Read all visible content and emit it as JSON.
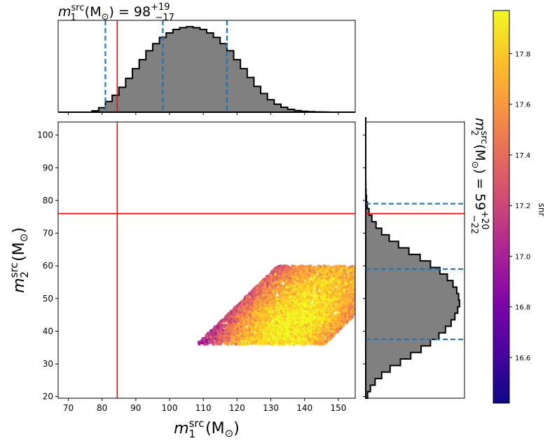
{
  "chart_data": [
    {
      "type": "histogram",
      "panel": "top-marginal",
      "title_var": "m",
      "title_sub": "1",
      "title_sup": "src",
      "title_unit": "(M",
      "title_unit_sub": "⊙",
      "title_unit_close": ")",
      "title_value": "= 98",
      "title_err_plus": "+19",
      "title_err_minus": "−17",
      "xlim": [
        67,
        155
      ],
      "bin_start": 67,
      "bin_width": 2,
      "counts": [
        0,
        0,
        0,
        0,
        0,
        0.015,
        0.05,
        0.12,
        0.19,
        0.28,
        0.38,
        0.49,
        0.59,
        0.69,
        0.77,
        0.84,
        0.89,
        0.93,
        0.95,
        0.96,
        0.95,
        0.93,
        0.89,
        0.84,
        0.77,
        0.69,
        0.59,
        0.49,
        0.39,
        0.29,
        0.21,
        0.14,
        0.09,
        0.055,
        0.032,
        0.018,
        0.01,
        0.006,
        0.003,
        0.0015,
        0,
        0,
        0,
        0
      ],
      "quantile_lines": [
        81,
        98,
        117
      ],
      "truth_line": 84.5,
      "fill": "#808080",
      "line_color": "#000000",
      "quantile_color": "#1f77b4",
      "truth_color": "#ff0000"
    },
    {
      "type": "scatter",
      "panel": "main",
      "xlabel_var": "m",
      "xlabel_sub": "1",
      "xlabel_sup": "src",
      "xlabel_unit": "(M",
      "xlabel_unit_sub": "⊙",
      "xlabel_unit_close": ")",
      "ylabel_var": "m",
      "ylabel_sub": "2",
      "ylabel_sup": "src",
      "ylabel_unit": "(M",
      "ylabel_unit_sub": "⊙",
      "ylabel_unit_close": ")",
      "xlim": [
        67,
        155
      ],
      "ylim": [
        19.5,
        104
      ],
      "xticks": [
        "70",
        "80",
        "90",
        "100",
        "110",
        "120",
        "130",
        "140",
        "150"
      ],
      "xtick_values": [
        70,
        80,
        90,
        100,
        110,
        120,
        130,
        140,
        150
      ],
      "yticks": [
        "20",
        "30",
        "40",
        "50",
        "60",
        "70",
        "80",
        "90",
        "100"
      ],
      "ytick_values": [
        20,
        30,
        40,
        50,
        60,
        70,
        80,
        90,
        100
      ],
      "truth_x": 84.5,
      "truth_y": 76,
      "colormap": "plasma",
      "point_color_range": [
        16.9,
        17.95
      ],
      "truth_color": "#ff0000"
    },
    {
      "type": "histogram",
      "panel": "right-marginal",
      "orientation": "horizontal",
      "title_var": "m",
      "title_sub": "2",
      "title_sup": "src",
      "title_unit": "(M",
      "title_unit_sub": "⊙",
      "title_unit_close": ")",
      "title_value": "= 59",
      "title_err_plus": "+20",
      "title_err_minus": "−22",
      "ylim": [
        19.5,
        104
      ],
      "bin_start": 19.5,
      "bin_width": 2,
      "counts": [
        0.02,
        0.05,
        0.1,
        0.17,
        0.26,
        0.37,
        0.48,
        0.59,
        0.69,
        0.78,
        0.85,
        0.91,
        0.95,
        0.98,
        1.0,
        0.99,
        0.97,
        0.93,
        0.87,
        0.79,
        0.69,
        0.58,
        0.46,
        0.35,
        0.25,
        0.17,
        0.11,
        0.065,
        0.035,
        0.017,
        0.008,
        0.003,
        0.001,
        0,
        0,
        0,
        0,
        0,
        0,
        0,
        0,
        0,
        0
      ],
      "quantile_lines": [
        37.5,
        59,
        79
      ],
      "truth_line": 76,
      "fill": "#808080",
      "line_color": "#000000",
      "quantile_color": "#1f77b4",
      "truth_color": "#ff0000"
    },
    {
      "type": "colorbar",
      "panel": "colorbar",
      "label": "snr",
      "colormap": "plasma",
      "range": [
        16.42,
        17.97
      ],
      "ticks": [
        "16.6",
        "16.8",
        "17.0",
        "17.2",
        "17.4",
        "17.6",
        "17.8"
      ],
      "tick_values": [
        16.6,
        16.8,
        17.0,
        17.2,
        17.4,
        17.6,
        17.8
      ]
    }
  ]
}
